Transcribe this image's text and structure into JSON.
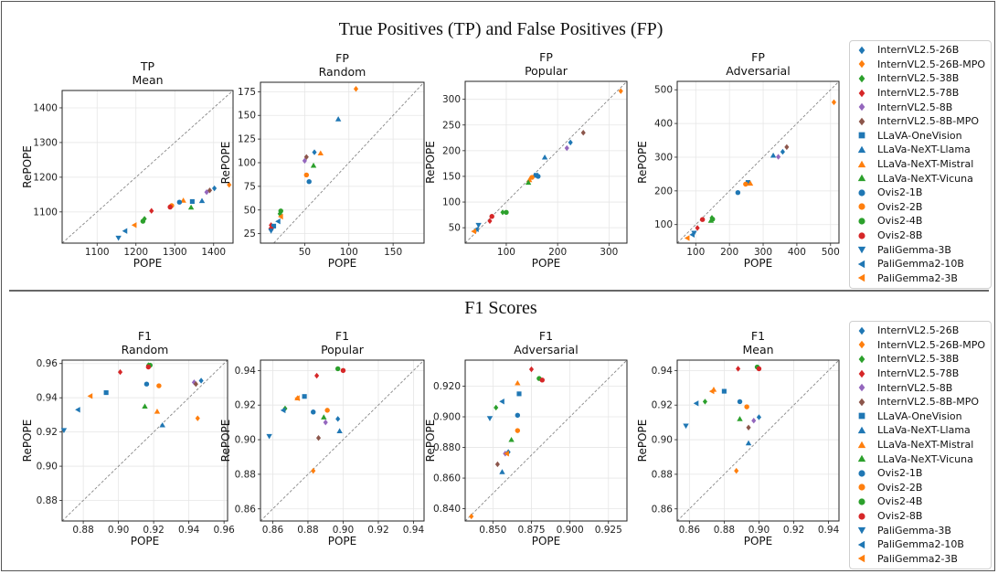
{
  "section_titles": [
    "True Positives (TP) and False Positives (FP)",
    "F1 Scores"
  ],
  "models": [
    {
      "name": "InternVL2.5-26B",
      "color": "#1f77b4",
      "marker": "diamond"
    },
    {
      "name": "InternVL2.5-26B-MPO",
      "color": "#ff7f0e",
      "marker": "diamond"
    },
    {
      "name": "InternVL2.5-38B",
      "color": "#2ca02c",
      "marker": "diamond"
    },
    {
      "name": "InternVL2.5-78B",
      "color": "#d62728",
      "marker": "diamond"
    },
    {
      "name": "InternVL2.5-8B",
      "color": "#9467bd",
      "marker": "diamond"
    },
    {
      "name": "InternVL2.5-8B-MPO",
      "color": "#8c564b",
      "marker": "diamond"
    },
    {
      "name": "LLaVA-OneVision",
      "color": "#1f77b4",
      "marker": "square"
    },
    {
      "name": "LLaVa-NeXT-Llama",
      "color": "#1f77b4",
      "marker": "triangle-up"
    },
    {
      "name": "LLaVa-NeXT-Mistral",
      "color": "#ff7f0e",
      "marker": "triangle-up"
    },
    {
      "name": "LLaVa-NeXT-Vicuna",
      "color": "#2ca02c",
      "marker": "triangle-up"
    },
    {
      "name": "Ovis2-1B",
      "color": "#1f77b4",
      "marker": "circle"
    },
    {
      "name": "Ovis2-2B",
      "color": "#ff7f0e",
      "marker": "circle"
    },
    {
      "name": "Ovis2-4B",
      "color": "#2ca02c",
      "marker": "circle"
    },
    {
      "name": "Ovis2-8B",
      "color": "#d62728",
      "marker": "circle"
    },
    {
      "name": "PaliGemma-3B",
      "color": "#1f77b4",
      "marker": "triangle-down"
    },
    {
      "name": "PaliGemma2-10B",
      "color": "#1f77b4",
      "marker": "triangle-left"
    },
    {
      "name": "PaliGemma2-3B",
      "color": "#ff7f0e",
      "marker": "triangle-left"
    }
  ],
  "chart_data": [
    {
      "type": "scatter",
      "title": "TP",
      "subtitle": "Mean",
      "xlabel": "POPE",
      "ylabel": "RePOPE",
      "xlim": [
        1010,
        1450
      ],
      "ylim": [
        1010,
        1450
      ],
      "xticks": [
        1100,
        1200,
        1300,
        1400
      ],
      "yticks": [
        1100,
        1200,
        1300,
        1400
      ],
      "decimals": 0,
      "points": [
        [
          1402,
          1168
        ],
        [
          1440,
          1178
        ],
        [
          1222,
          1080
        ],
        [
          1240,
          1103
        ],
        [
          1382,
          1157
        ],
        [
          1390,
          1162
        ],
        [
          1345,
          1130
        ],
        [
          1370,
          1132
        ],
        [
          1322,
          1133
        ],
        [
          1342,
          1113
        ],
        [
          1312,
          1128
        ],
        [
          1292,
          1118
        ],
        [
          1218,
          1073
        ],
        [
          1288,
          1114
        ],
        [
          1155,
          1025
        ],
        [
          1172,
          1045
        ],
        [
          1196,
          1062
        ]
      ]
    },
    {
      "type": "scatter",
      "title": "FP",
      "subtitle": "Random",
      "xlabel": "POPE",
      "ylabel": "RePOPE",
      "xlim": [
        0,
        185
      ],
      "ylim": [
        15,
        185
      ],
      "xticks": [
        50,
        100,
        150
      ],
      "yticks": [
        25,
        50,
        75,
        100,
        125,
        150,
        175
      ],
      "decimals": 0,
      "points": [
        [
          61,
          111
        ],
        [
          108,
          178
        ],
        [
          22,
          46
        ],
        [
          12,
          34
        ],
        [
          50,
          102
        ],
        [
          52,
          106
        ],
        [
          15,
          33
        ],
        [
          88,
          146
        ],
        [
          68,
          110
        ],
        [
          60,
          97
        ],
        [
          55,
          80
        ],
        [
          52,
          87
        ],
        [
          23,
          49
        ],
        [
          12,
          30
        ],
        [
          12,
          28
        ],
        [
          20,
          38
        ],
        [
          23,
          43
        ]
      ]
    },
    {
      "type": "scatter",
      "title": "FP",
      "subtitle": "Popular",
      "xlabel": "POPE",
      "ylabel": "RePOPE",
      "xlim": [
        20,
        335
      ],
      "ylim": [
        20,
        335
      ],
      "xticks": [
        100,
        200,
        300
      ],
      "yticks": [
        50,
        100,
        150,
        200,
        250,
        300
      ],
      "decimals": 0,
      "points": [
        [
          225,
          216
        ],
        [
          323,
          316
        ],
        [
          93,
          80
        ],
        [
          68,
          63
        ],
        [
          218,
          205
        ],
        [
          250,
          235
        ],
        [
          158,
          152
        ],
        [
          175,
          187
        ],
        [
          145,
          143
        ],
        [
          143,
          138
        ],
        [
          162,
          150
        ],
        [
          150,
          148
        ],
        [
          100,
          80
        ],
        [
          72,
          72
        ],
        [
          46,
          55
        ],
        [
          42,
          47
        ],
        [
          37,
          43
        ]
      ]
    },
    {
      "type": "scatter",
      "title": "FP",
      "subtitle": "Adversarial",
      "xlabel": "POPE",
      "ylabel": "RePOPE",
      "xlim": [
        45,
        525
      ],
      "ylim": [
        45,
        525
      ],
      "xticks": [
        100,
        200,
        300,
        400,
        500
      ],
      "yticks": [
        100,
        200,
        300,
        400,
        500
      ],
      "decimals": 0,
      "points": [
        [
          358,
          316
        ],
        [
          510,
          463
        ],
        [
          148,
          120
        ],
        [
          105,
          90
        ],
        [
          345,
          301
        ],
        [
          370,
          330
        ],
        [
          255,
          225
        ],
        [
          330,
          305
        ],
        [
          262,
          222
        ],
        [
          145,
          112
        ],
        [
          225,
          195
        ],
        [
          248,
          220
        ],
        [
          150,
          116
        ],
        [
          120,
          115
        ],
        [
          95,
          75
        ],
        [
          90,
          70
        ],
        [
          75,
          60
        ]
      ]
    },
    {
      "type": "scatter",
      "title": "F1",
      "subtitle": "Random",
      "xlabel": "POPE",
      "ylabel": "RePOPE",
      "xlim": [
        0.868,
        0.962
      ],
      "ylim": [
        0.868,
        0.962
      ],
      "xticks": [
        0.88,
        0.9,
        0.92,
        0.94,
        0.96
      ],
      "yticks": [
        0.88,
        0.9,
        0.92,
        0.94,
        0.96
      ],
      "decimals": 2,
      "points": [
        [
          0.947,
          0.95
        ],
        [
          0.945,
          0.928
        ],
        [
          0.917,
          0.959
        ],
        [
          0.901,
          0.955
        ],
        [
          0.943,
          0.949
        ],
        [
          0.944,
          0.948
        ],
        [
          0.893,
          0.943
        ],
        [
          0.925,
          0.924
        ],
        [
          0.922,
          0.932
        ],
        [
          0.915,
          0.935
        ],
        [
          0.916,
          0.948
        ],
        [
          0.923,
          0.947
        ],
        [
          0.918,
          0.959
        ],
        [
          0.917,
          0.958
        ],
        [
          0.869,
          0.921
        ],
        [
          0.877,
          0.933
        ],
        [
          0.884,
          0.941
        ]
      ]
    },
    {
      "type": "scatter",
      "title": "F1",
      "subtitle": "Popular",
      "xlabel": "POPE",
      "ylabel": "RePOPE",
      "xlim": [
        0.853,
        0.946
      ],
      "ylim": [
        0.853,
        0.946
      ],
      "xticks": [
        0.86,
        0.88,
        0.9,
        0.92,
        0.94
      ],
      "yticks": [
        0.86,
        0.88,
        0.9,
        0.92,
        0.94
      ],
      "decimals": 2,
      "points": [
        [
          0.897,
          0.912
        ],
        [
          0.883,
          0.882
        ],
        [
          0.867,
          0.918
        ],
        [
          0.885,
          0.937
        ],
        [
          0.89,
          0.91
        ],
        [
          0.886,
          0.901
        ],
        [
          0.878,
          0.925
        ],
        [
          0.898,
          0.905
        ],
        [
          0.874,
          0.924
        ],
        [
          0.889,
          0.913
        ],
        [
          0.883,
          0.916
        ],
        [
          0.891,
          0.917
        ],
        [
          0.897,
          0.941
        ],
        [
          0.9,
          0.94
        ],
        [
          0.858,
          0.902
        ],
        [
          0.866,
          0.917
        ],
        [
          0.874,
          0.924
        ]
      ]
    },
    {
      "type": "scatter",
      "title": "F1",
      "subtitle": "Adversarial",
      "xlabel": "POPE",
      "ylabel": "RePOPE",
      "xlim": [
        0.832,
        0.937
      ],
      "ylim": [
        0.832,
        0.937
      ],
      "xticks": [
        0.85,
        0.875,
        0.9,
        0.925
      ],
      "yticks": [
        0.84,
        0.86,
        0.88,
        0.9,
        0.92
      ],
      "decimals": 3,
      "points": [
        [
          0.86,
          0.877
        ],
        [
          0.836,
          0.835
        ],
        [
          0.852,
          0.906
        ],
        [
          0.875,
          0.931
        ],
        [
          0.858,
          0.876
        ],
        [
          0.853,
          0.869
        ],
        [
          0.867,
          0.915
        ],
        [
          0.856,
          0.864
        ],
        [
          0.866,
          0.922
        ],
        [
          0.862,
          0.885
        ],
        [
          0.866,
          0.901
        ],
        [
          0.866,
          0.891
        ],
        [
          0.88,
          0.925
        ],
        [
          0.882,
          0.924
        ],
        [
          0.848,
          0.899
        ],
        [
          0.856,
          0.91
        ],
        [
          0.859,
          0.876
        ]
      ]
    },
    {
      "type": "scatter",
      "title": "F1",
      "subtitle": "Mean",
      "xlabel": "POPE",
      "ylabel": "RePOPE",
      "xlim": [
        0.853,
        0.946
      ],
      "ylim": [
        0.853,
        0.946
      ],
      "xticks": [
        0.86,
        0.88,
        0.9,
        0.92,
        0.94
      ],
      "yticks": [
        0.86,
        0.88,
        0.9,
        0.92,
        0.94
      ],
      "decimals": 2,
      "points": [
        [
          0.9,
          0.913
        ],
        [
          0.887,
          0.882
        ],
        [
          0.869,
          0.922
        ],
        [
          0.888,
          0.941
        ],
        [
          0.897,
          0.911
        ],
        [
          0.894,
          0.907
        ],
        [
          0.88,
          0.928
        ],
        [
          0.894,
          0.898
        ],
        [
          0.874,
          0.929
        ],
        [
          0.889,
          0.912
        ],
        [
          0.889,
          0.922
        ],
        [
          0.893,
          0.919
        ],
        [
          0.899,
          0.942
        ],
        [
          0.9,
          0.941
        ],
        [
          0.858,
          0.908
        ],
        [
          0.864,
          0.921
        ],
        [
          0.873,
          0.928
        ]
      ]
    }
  ]
}
